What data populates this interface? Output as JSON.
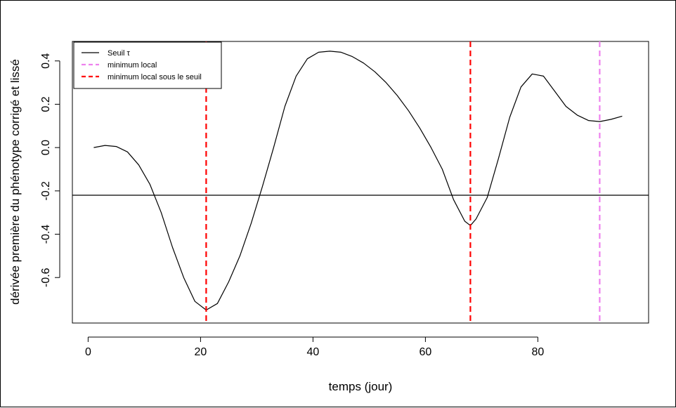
{
  "chart_data": {
    "type": "line",
    "title": "",
    "xlabel": "temps (jour)",
    "ylabel": "dérivée première du phénotype corrigé et lissé",
    "xlim": [
      -2.8,
      99.7
    ],
    "ylim": [
      -0.81,
      0.49
    ],
    "x_ticks": [
      0,
      20,
      40,
      60,
      80
    ],
    "y_ticks": [
      -0.6,
      -0.4,
      -0.2,
      0.0,
      0.2,
      0.4
    ],
    "x_tick_labels": [
      "0",
      "20",
      "40",
      "60",
      "80"
    ],
    "y_tick_labels": [
      "-0.6",
      "-0.4",
      "-0.2",
      "0.0",
      "0.2",
      "0.4"
    ],
    "grid": false,
    "legend_position": "top-left",
    "series": [
      {
        "name": "",
        "style": "solid",
        "color": "#000000",
        "x": [
          1,
          3,
          5,
          7,
          9,
          11,
          13,
          15,
          17,
          19,
          21,
          23,
          25,
          27,
          29,
          31,
          33,
          35,
          37,
          39,
          41,
          43,
          45,
          47,
          49,
          51,
          53,
          55,
          57,
          59,
          61,
          63,
          65,
          67,
          68,
          69,
          71,
          73,
          75,
          77,
          79,
          81,
          83,
          85,
          87,
          89,
          91,
          93,
          95
        ],
        "y": [
          0.0,
          0.01,
          0.005,
          -0.02,
          -0.08,
          -0.17,
          -0.3,
          -0.46,
          -0.6,
          -0.71,
          -0.75,
          -0.72,
          -0.62,
          -0.5,
          -0.35,
          -0.18,
          0.0,
          0.19,
          0.33,
          0.41,
          0.44,
          0.445,
          0.44,
          0.42,
          0.39,
          0.35,
          0.3,
          0.24,
          0.17,
          0.09,
          0.0,
          -0.1,
          -0.24,
          -0.34,
          -0.36,
          -0.33,
          -0.23,
          -0.05,
          0.14,
          0.28,
          0.34,
          0.33,
          0.26,
          0.19,
          0.15,
          0.125,
          0.12,
          0.13,
          0.145
        ]
      },
      {
        "name": "Seuil τ",
        "style": "solid",
        "color": "#000000",
        "type": "hline",
        "y": -0.22
      }
    ],
    "vlines": [
      {
        "x": 21,
        "color": "#ff0000",
        "style": "dashed",
        "name": "minimum local sous le seuil"
      },
      {
        "x": 68,
        "color": "#ff0000",
        "style": "dashed",
        "name": "minimum local sous le seuil"
      },
      {
        "x": 91,
        "color": "#ee82ee",
        "style": "dashed",
        "name": "minimum local"
      }
    ],
    "legend": [
      {
        "label": "Seuil τ",
        "color": "#000000",
        "style": "solid"
      },
      {
        "label": "minimum local",
        "color": "#ee82ee",
        "style": "dashed"
      },
      {
        "label": "minimum local sous le seuil",
        "color": "#ff0000",
        "style": "dashed"
      }
    ]
  }
}
